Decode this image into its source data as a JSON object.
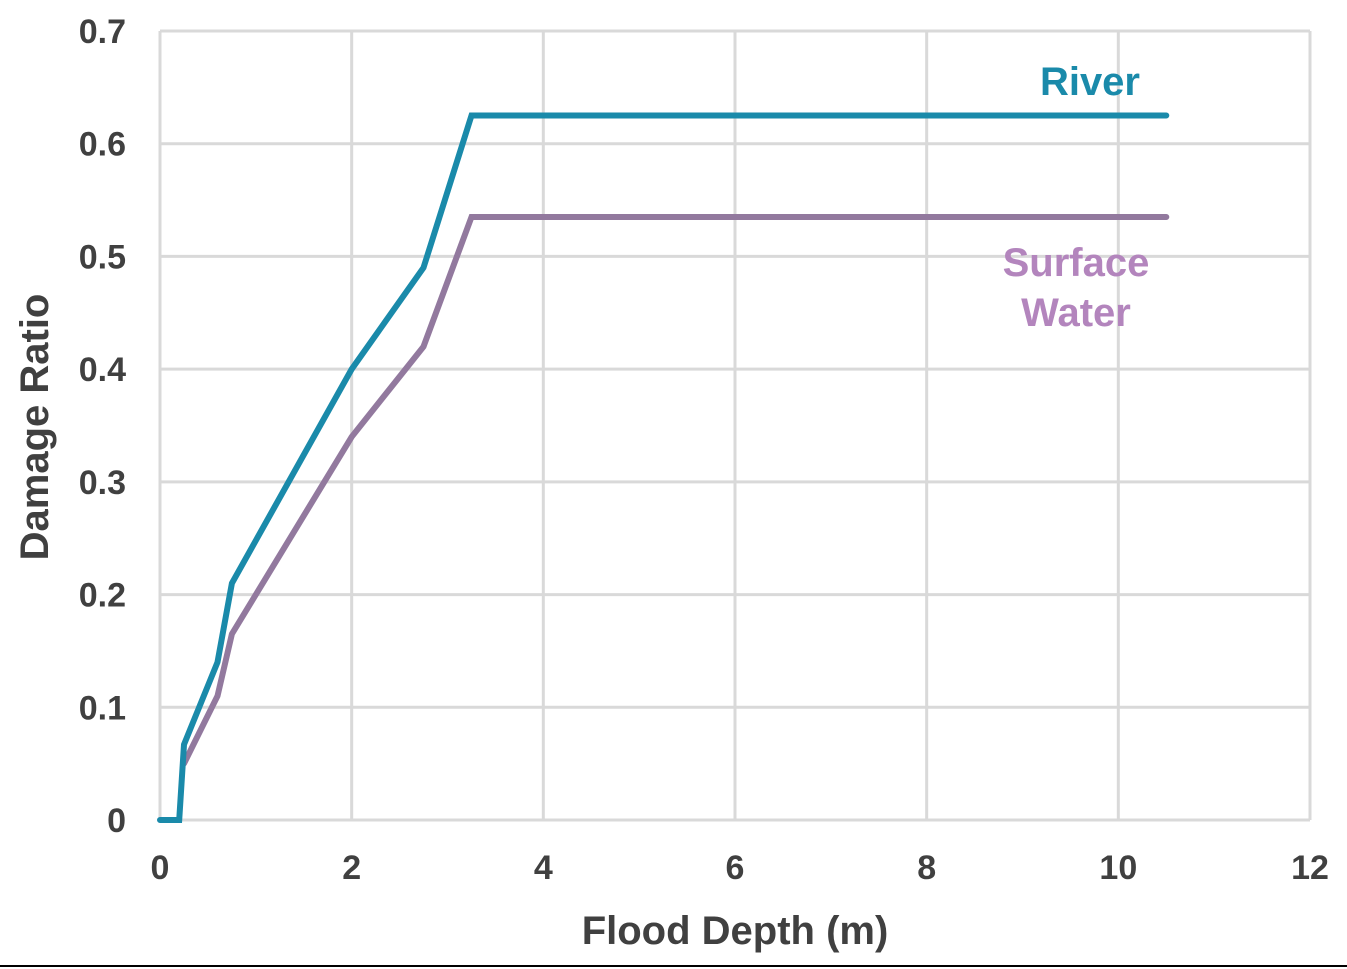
{
  "chart_data": {
    "type": "line",
    "title": "",
    "xlabel": "Flood Depth (m)",
    "ylabel": "Damage Ratio",
    "xlim": [
      0,
      12
    ],
    "ylim": [
      0,
      0.7
    ],
    "xticks": [
      "0",
      "2",
      "4",
      "6",
      "8",
      "10",
      "12"
    ],
    "yticks": [
      "0",
      "0.1",
      "0.2",
      "0.3",
      "0.4",
      "0.5",
      "0.6",
      "0.7"
    ],
    "grid": true,
    "legend": "inline labels",
    "series": [
      {
        "name": "River",
        "color": "#1A8AAA",
        "x": [
          0,
          0.2,
          0.25,
          0.6,
          0.75,
          2,
          2.75,
          3.25,
          10.5
        ],
        "y": [
          0,
          0,
          0.067,
          0.14,
          0.21,
          0.4,
          0.49,
          0.625,
          0.625
        ]
      },
      {
        "name": "Surface Water",
        "label_lines": [
          "Surface",
          "Water"
        ],
        "color": "#92799E",
        "label_color": "#B385BD",
        "x": [
          0.25,
          0.6,
          0.75,
          2,
          2.75,
          3.25,
          10.5
        ],
        "y": [
          0.05,
          0.11,
          0.165,
          0.34,
          0.42,
          0.535,
          0.535
        ]
      }
    ]
  }
}
